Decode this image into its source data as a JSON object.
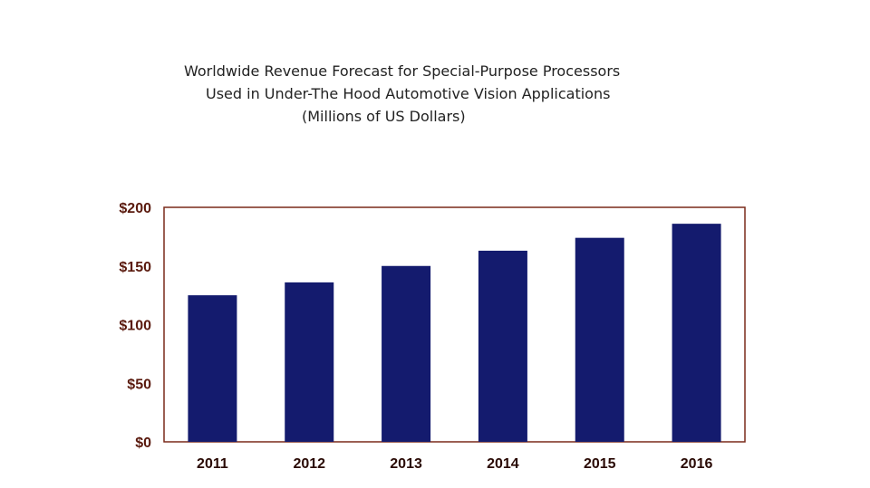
{
  "chart_data": {
    "type": "bar",
    "title_lines": [
      "Worldwide Revenue Forecast for Special-Purpose Processors",
      "Used in Under-The Hood Automotive Vision Applications",
      "(Millions of US Dollars)"
    ],
    "categories": [
      "2011",
      "2012",
      "2013",
      "2014",
      "2015",
      "2016"
    ],
    "values": [
      125,
      136,
      150,
      163,
      174,
      186
    ],
    "ylim": [
      0,
      200
    ],
    "yticks": [
      0,
      50,
      100,
      150,
      200
    ],
    "ytick_labels": [
      "$0",
      "$50",
      "$100",
      "$150",
      "$200"
    ],
    "grid": false,
    "colors": {
      "bar": "#141b6e",
      "frame": "#7a2a1a",
      "tick_text": "#5a1a0e"
    }
  }
}
